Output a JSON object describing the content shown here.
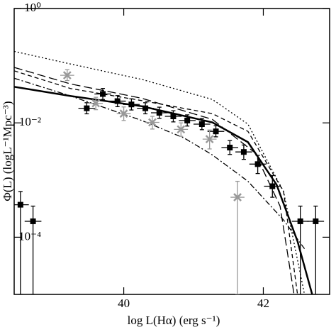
{
  "chart_data": {
    "type": "scatter",
    "x_label": "log L(Hα) (erg s⁻¹)",
    "y_label": "Φ(L) (logL⁻¹Mpc⁻³)",
    "xlim": [
      38.43,
      42.95
    ],
    "ylim": [
      1e-05,
      1
    ],
    "log_y": true,
    "xticks": [
      40,
      42
    ],
    "yticks": [
      {
        "value": 1,
        "label": "10⁰"
      },
      {
        "value": 0.01,
        "label": "10⁻²"
      },
      {
        "value": 0.0001,
        "label": "10⁻⁴"
      }
    ],
    "points": [
      {
        "color": "#000000",
        "marker": "square",
        "xerr": 0.12,
        "x": [
          38.52,
          38.7,
          39.47,
          39.7,
          39.91,
          40.11,
          40.31,
          40.51,
          40.71,
          40.91,
          41.12,
          41.32,
          41.52,
          41.72,
          41.92,
          42.13,
          42.53,
          42.75
        ],
        "values": [
          0.00037,
          0.00019,
          0.018,
          0.032,
          0.024,
          0.021,
          0.018,
          0.015,
          0.013,
          0.011,
          0.0095,
          0.0071,
          0.0037,
          0.0031,
          0.0019,
          0.00078,
          0.00019,
          0.00019
        ],
        "y_lower": [
          1e-05,
          1e-05,
          0.0144,
          0.0256,
          0.0192,
          0.0168,
          0.0144,
          0.012,
          0.0104,
          0.0088,
          0.0076,
          0.0057,
          0.0028,
          0.0023,
          0.0013,
          0.0005,
          1e-05,
          1e-05
        ],
        "y_upper": [
          0.00063,
          0.00035,
          0.0225,
          0.04,
          0.03,
          0.0263,
          0.0225,
          0.0188,
          0.0163,
          0.0138,
          0.0119,
          0.0089,
          0.0049,
          0.0041,
          0.0027,
          0.0012,
          0.00035,
          0.00035
        ]
      },
      {
        "color": "#999999",
        "marker": "cross",
        "xerr": 0.1,
        "x": [
          39.19,
          39.6,
          40.0,
          40.41,
          40.82,
          41.23,
          41.63
        ],
        "values": [
          0.068,
          0.022,
          0.0145,
          0.0102,
          0.0077,
          0.0052,
          0.0005
        ],
        "y_lower": [
          0.055,
          0.017,
          0.011,
          0.0078,
          0.0058,
          0.0035,
          1e-05
        ],
        "y_upper": [
          0.085,
          0.028,
          0.019,
          0.013,
          0.01,
          0.0075,
          0.00095
        ]
      }
    ],
    "curves": [
      {
        "color": "#000000",
        "linestyle": "solid",
        "width": 2.5,
        "x": [
          38.43,
          39.24,
          40.26,
          41.27,
          41.78,
          42.19,
          42.49,
          42.7
        ],
        "values": [
          0.0427,
          0.0295,
          0.0195,
          0.0102,
          0.0046,
          0.00083,
          8.5e-05,
          1e-05
        ]
      },
      {
        "color": "#000000",
        "linestyle": "dotted",
        "width": 1.3,
        "x": [
          38.43,
          39.24,
          40.26,
          41.27,
          41.78,
          42.29,
          42.59
        ],
        "values": [
          0.178,
          0.107,
          0.0575,
          0.0257,
          0.0095,
          0.00063,
          1e-05
        ]
      },
      {
        "color": "#000000",
        "linestyle": "dashed",
        "width": 1.3,
        "x": [
          38.43,
          39.24,
          40.26,
          41.27,
          41.78,
          42.29,
          42.49
        ],
        "values": [
          0.0813,
          0.0398,
          0.0245,
          0.0145,
          0.0071,
          0.00063,
          1e-05
        ]
      },
      {
        "color": "#000000",
        "linestyle": "longdash",
        "width": 1.3,
        "x": [
          38.43,
          39.24,
          40.26,
          41.27,
          41.88,
          42.24,
          42.44
        ],
        "values": [
          0.0933,
          0.0479,
          0.0269,
          0.0115,
          0.003,
          0.00035,
          1e-05
        ]
      },
      {
        "color": "#000000",
        "linestyle": "dashdot",
        "width": 1.3,
        "x": [
          38.43,
          39.24,
          40.26,
          40.87,
          41.27,
          41.78,
          42.29,
          42.59
        ],
        "values": [
          0.0603,
          0.0295,
          0.011,
          0.0054,
          0.00275,
          0.00095,
          0.0002,
          6.3e-05
        ]
      }
    ]
  }
}
